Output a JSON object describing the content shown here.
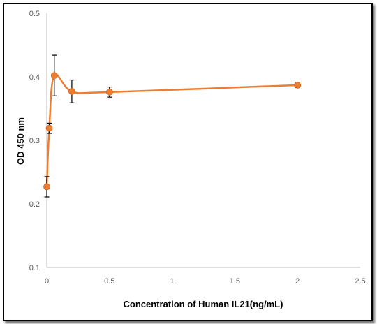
{
  "chart_data": {
    "type": "scatter",
    "title": "",
    "xlabel": "Concentration of Human IL21(ng/mL)",
    "ylabel": "OD  450 nm",
    "xlim": [
      0,
      2.5
    ],
    "ylim": [
      0.1,
      0.5
    ],
    "xticks": [
      "0",
      "0.5",
      "1",
      "1.5",
      "2",
      "2.5"
    ],
    "yticks": [
      "0.1",
      "0.2",
      "0.3",
      "0.4",
      "0.5"
    ],
    "grid": false,
    "legend": "none",
    "series": [
      {
        "color": "#ED7D31",
        "line": "smooth",
        "x": [
          0,
          0.02,
          0.06,
          0.2,
          0.5,
          2
        ],
        "y": [
          0.227,
          0.319,
          0.402,
          0.377,
          0.376,
          0.387
        ],
        "error": [
          0.016,
          0.008,
          0.032,
          0.018,
          0.008,
          0.004
        ]
      }
    ]
  }
}
